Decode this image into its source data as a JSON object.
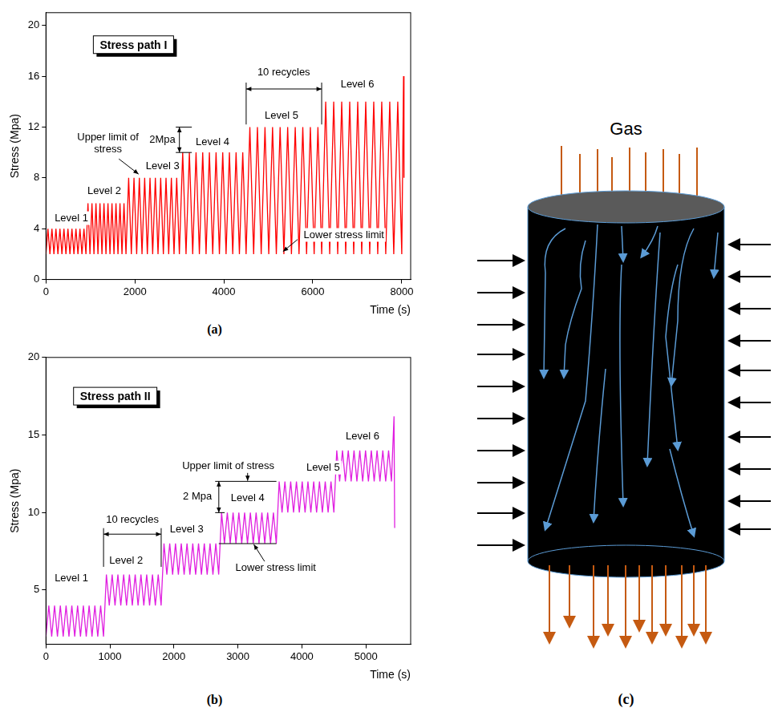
{
  "chart_data": [
    {
      "type": "line",
      "panel": "(a)",
      "title": "Stress path I",
      "x_label": "Time (s)",
      "y_label": "Stress (Mpa)",
      "color": "#ff0000",
      "grid": false,
      "xlim": [
        0,
        8200
      ],
      "xticks": [
        0,
        2000,
        4000,
        6000,
        8000
      ],
      "ylim": [
        0,
        21
      ],
      "yticks": [
        0,
        4,
        8,
        12,
        16,
        20
      ],
      "annotations": {
        "levels": [
          "Level 1",
          "Level 2",
          "Level 3",
          "Level 4",
          "Level 5",
          "Level 6"
        ],
        "upper_limit": "Upper limit of stress",
        "step": "2Mpa",
        "cycles": "10 recycles",
        "lower_limit": "Lower stress limit"
      },
      "x": [
        0,
        45,
        90,
        135,
        180,
        225,
        270,
        315,
        360,
        405,
        450,
        495,
        540,
        585,
        630,
        675,
        720,
        765,
        810,
        855,
        900,
        945,
        990,
        1035,
        1080,
        1125,
        1170,
        1215,
        1260,
        1305,
        1350,
        1395,
        1440,
        1485,
        1530,
        1575,
        1620,
        1665,
        1710,
        1755,
        1800,
        1860,
        1920,
        1980,
        2040,
        2100,
        2160,
        2220,
        2280,
        2340,
        2400,
        2460,
        2520,
        2580,
        2640,
        2700,
        2760,
        2820,
        2880,
        2940,
        3000,
        3075,
        3150,
        3225,
        3300,
        3375,
        3450,
        3525,
        3600,
        3675,
        3750,
        3825,
        3900,
        3975,
        4050,
        4125,
        4200,
        4275,
        4350,
        4425,
        4500,
        4585,
        4670,
        4755,
        4840,
        4925,
        5010,
        5095,
        5180,
        5265,
        5350,
        5435,
        5520,
        5605,
        5690,
        5775,
        5860,
        5945,
        6030,
        6115,
        6200,
        6290,
        6380,
        6470,
        6560,
        6650,
        6740,
        6830,
        6920,
        7010,
        7100,
        7190,
        7280,
        7370,
        7460,
        7550,
        7640,
        7730,
        7820,
        7910,
        8000,
        8040,
        8050
      ],
      "values": [
        2,
        4,
        2,
        4,
        2,
        4,
        2,
        4,
        2,
        4,
        2,
        4,
        2,
        4,
        2,
        4,
        2,
        4,
        2,
        4,
        2,
        6,
        2,
        6,
        2,
        6,
        2,
        6,
        2,
        6,
        2,
        6,
        2,
        6,
        2,
        6,
        2,
        6,
        2,
        6,
        2,
        8,
        2,
        8,
        2,
        8,
        2,
        8,
        2,
        8,
        2,
        8,
        2,
        8,
        2,
        8,
        2,
        8,
        2,
        8,
        2,
        10,
        2,
        10,
        2,
        10,
        2,
        10,
        2,
        10,
        2,
        10,
        2,
        10,
        2,
        10,
        2,
        10,
        2,
        10,
        2,
        12,
        2,
        12,
        2,
        12,
        2,
        12,
        2,
        12,
        2,
        12,
        2,
        12,
        2,
        12,
        2,
        12,
        2,
        12,
        2,
        14,
        2,
        14,
        2,
        14,
        2,
        14,
        2,
        14,
        2,
        14,
        2,
        14,
        2,
        14,
        2,
        14,
        2,
        14,
        2,
        16,
        8
      ]
    },
    {
      "type": "line",
      "panel": "(b)",
      "title": "Stress path II",
      "x_label": "Time (s)",
      "y_label": "Stress (Mpa)",
      "color": "#e01ee0",
      "grid": false,
      "xlim": [
        0,
        5700
      ],
      "xticks": [
        0,
        1000,
        2000,
        3000,
        4000,
        5000
      ],
      "ylim": [
        1.5,
        20
      ],
      "yticks": [
        5,
        10,
        15,
        20
      ],
      "annotations": {
        "levels": [
          "Level 1",
          "Level 2",
          "Level 3",
          "Level 4",
          "Level 5",
          "Level 6"
        ],
        "upper_limit": "Upper limit of stress",
        "step": "2 Mpa",
        "cycles": "10 recycles",
        "lower_limit": "Lower stress limit"
      },
      "x": [
        0,
        45,
        90,
        135,
        180,
        225,
        270,
        315,
        360,
        405,
        450,
        495,
        540,
        585,
        630,
        675,
        720,
        765,
        810,
        855,
        900,
        945,
        990,
        1035,
        1080,
        1125,
        1170,
        1215,
        1260,
        1305,
        1350,
        1395,
        1440,
        1485,
        1530,
        1575,
        1620,
        1665,
        1710,
        1755,
        1800,
        1845,
        1890,
        1935,
        1980,
        2025,
        2070,
        2115,
        2160,
        2205,
        2250,
        2295,
        2340,
        2385,
        2430,
        2475,
        2520,
        2565,
        2610,
        2655,
        2700,
        2745,
        2790,
        2835,
        2880,
        2925,
        2970,
        3015,
        3060,
        3105,
        3150,
        3195,
        3240,
        3285,
        3330,
        3375,
        3420,
        3465,
        3510,
        3555,
        3600,
        3645,
        3690,
        3735,
        3780,
        3825,
        3870,
        3915,
        3960,
        4005,
        4050,
        4095,
        4140,
        4185,
        4230,
        4275,
        4320,
        4365,
        4410,
        4455,
        4500,
        4545,
        4590,
        4635,
        4680,
        4725,
        4770,
        4815,
        4860,
        4905,
        4950,
        4995,
        5040,
        5085,
        5130,
        5175,
        5220,
        5265,
        5310,
        5355,
        5400,
        5440,
        5450
      ],
      "values": [
        2,
        4,
        2,
        4,
        2,
        4,
        2,
        4,
        2,
        4,
        2,
        4,
        2,
        4,
        2,
        4,
        2,
        4,
        2,
        4,
        2,
        6,
        4,
        6,
        4,
        6,
        4,
        6,
        4,
        6,
        4,
        6,
        4,
        6,
        4,
        6,
        4,
        6,
        4,
        6,
        4,
        8,
        6,
        8,
        6,
        8,
        6,
        8,
        6,
        8,
        6,
        8,
        6,
        8,
        6,
        8,
        6,
        8,
        6,
        8,
        6,
        10,
        8,
        10,
        8,
        10,
        8,
        10,
        8,
        10,
        8,
        10,
        8,
        10,
        8,
        10,
        8,
        10,
        8,
        10,
        8,
        12,
        10,
        12,
        10,
        12,
        10,
        12,
        10,
        12,
        10,
        12,
        10,
        12,
        10,
        12,
        10,
        12,
        10,
        12,
        10,
        14,
        12,
        14,
        12,
        14,
        12,
        14,
        12,
        14,
        12,
        14,
        12,
        14,
        12,
        14,
        12,
        14,
        12,
        14,
        12,
        16.2,
        9
      ]
    }
  ],
  "diagram": {
    "label": "(c)",
    "text": "Gas"
  }
}
